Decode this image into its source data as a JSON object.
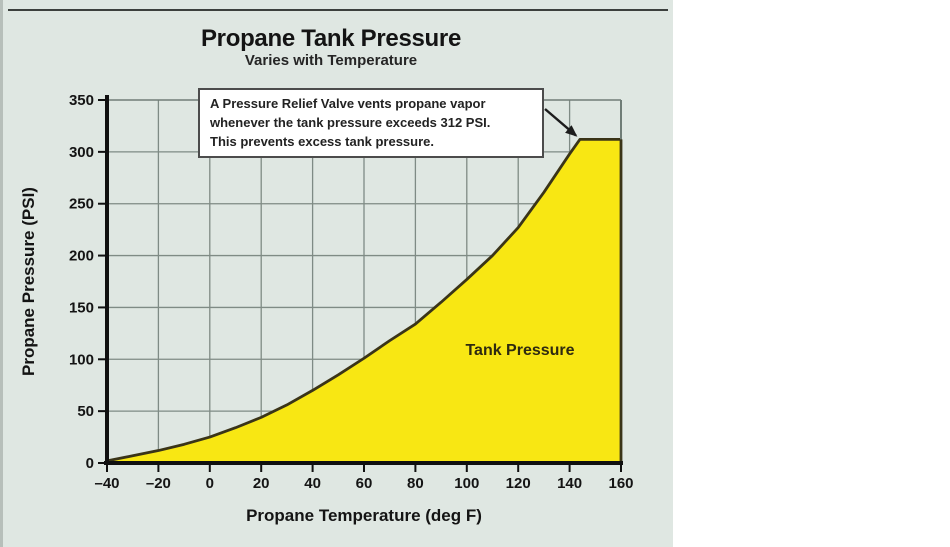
{
  "page": {
    "background": "#ffffff"
  },
  "panel": {
    "background": "#dfe7e2",
    "top_rule_color": "#3c403d"
  },
  "chart_data": {
    "type": "area",
    "title": "Propane Tank Pressure",
    "subtitle": "Varies with Temperature",
    "xlabel": "Propane Temperature (deg F)",
    "ylabel": "Propane Pressure (PSI)",
    "xlim": [
      -40,
      160
    ],
    "ylim": [
      0,
      350
    ],
    "x_ticks": [
      -40,
      -20,
      0,
      20,
      40,
      60,
      80,
      100,
      120,
      140,
      160
    ],
    "y_ticks": [
      0,
      50,
      100,
      150,
      200,
      250,
      300,
      350
    ],
    "grid": true,
    "legend_position": "none",
    "area_label": "Tank Pressure",
    "relief_valve_psi": 312,
    "series": [
      {
        "name": "Tank Pressure",
        "points": [
          [
            -40,
            2
          ],
          [
            -30,
            7
          ],
          [
            -20,
            12
          ],
          [
            -10,
            18
          ],
          [
            0,
            25
          ],
          [
            10,
            34
          ],
          [
            20,
            44
          ],
          [
            30,
            56
          ],
          [
            40,
            70
          ],
          [
            50,
            85
          ],
          [
            60,
            101
          ],
          [
            70,
            118
          ],
          [
            80,
            134
          ],
          [
            90,
            155
          ],
          [
            100,
            177
          ],
          [
            110,
            200
          ],
          [
            120,
            227
          ],
          [
            130,
            261
          ],
          [
            140,
            298
          ],
          [
            144,
            312
          ],
          [
            160,
            312
          ]
        ],
        "fill": "#f8e713",
        "stroke": "#3a3418"
      }
    ],
    "annotation": {
      "lines": [
        "A Pressure Relief Valve vents propane vapor",
        "whenever the tank pressure exceeds 312 PSI.",
        "This prevents excess tank pressure."
      ],
      "arrow_target": [
        144,
        312
      ]
    },
    "colors": {
      "grid": "#7f8b85",
      "border": "#707d77",
      "axis": "#101010",
      "text": "#141414",
      "arrow": "#1c1c1c"
    }
  }
}
